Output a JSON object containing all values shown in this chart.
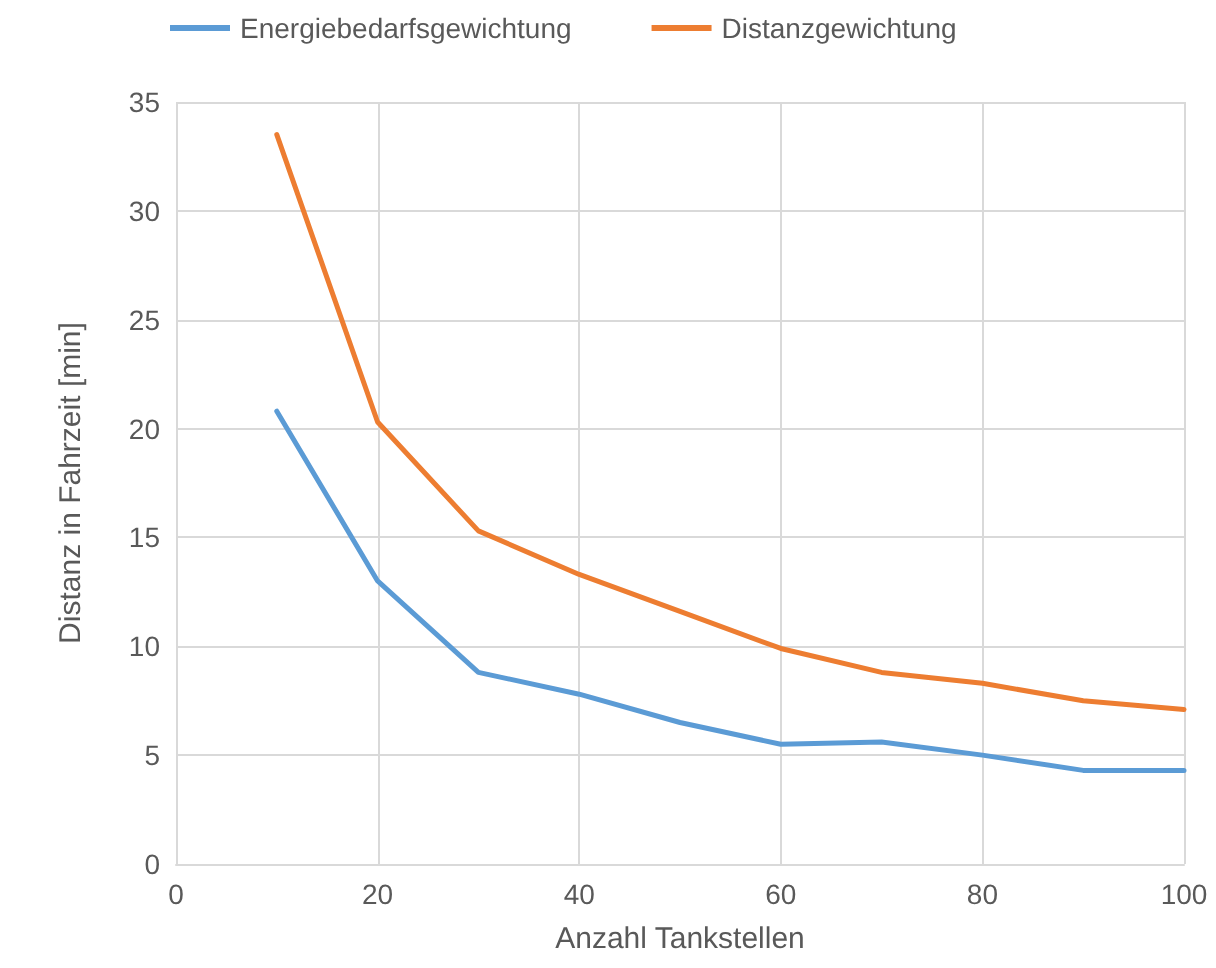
{
  "chart_data": {
    "type": "line",
    "xlabel": "Anzahl Tankstellen",
    "ylabel": "Distanz in Fahrzeit [min]",
    "x": [
      10,
      20,
      30,
      40,
      50,
      60,
      70,
      80,
      90,
      100
    ],
    "series": [
      {
        "name": "Energiebedarfsgewichtung",
        "color": "#5b9bd5",
        "values": [
          20.8,
          13.0,
          8.8,
          7.8,
          6.5,
          5.5,
          5.6,
          5.0,
          4.3,
          4.3
        ]
      },
      {
        "name": "Distanzgewichtung",
        "color": "#ed7d31",
        "values": [
          33.5,
          20.3,
          15.3,
          13.3,
          11.6,
          9.9,
          8.8,
          8.3,
          7.5,
          7.1
        ]
      }
    ],
    "xlim": [
      0,
      100
    ],
    "xticks": [
      0,
      20,
      40,
      60,
      80,
      100
    ],
    "ylim": [
      0,
      35
    ],
    "yticks": [
      0,
      5,
      10,
      15,
      20,
      25,
      30,
      35
    ],
    "grid": true,
    "legend": "top",
    "marker": "none",
    "line_style": "solid"
  }
}
